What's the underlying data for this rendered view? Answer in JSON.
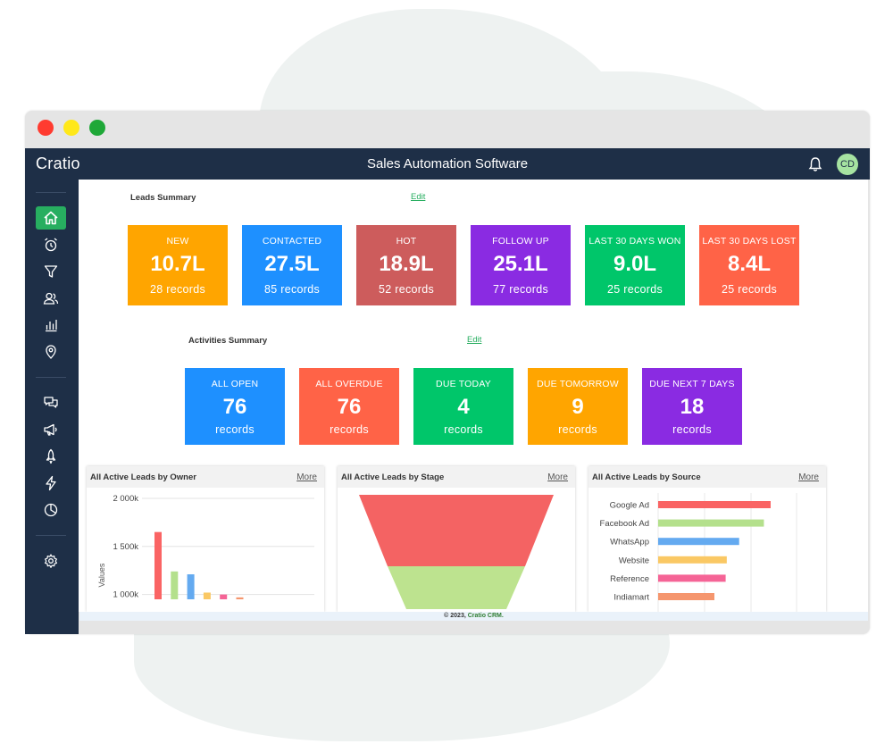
{
  "window": {
    "controls": [
      "close",
      "minimize",
      "maximize"
    ],
    "control_colors": [
      "#ff3b30",
      "#ffe81a",
      "#1fa838"
    ]
  },
  "topbar": {
    "brand": "Cratio",
    "title": "Sales Automation Software",
    "bell_icon": "bell-icon",
    "avatar": "CD"
  },
  "sidebar": {
    "items": [
      {
        "icon": "home-icon",
        "active": true
      },
      {
        "icon": "alarm-clock-icon"
      },
      {
        "icon": "filter-icon"
      },
      {
        "icon": "users-icon"
      },
      {
        "icon": "bar-chart-icon"
      },
      {
        "icon": "location-pin-icon"
      },
      {
        "icon": "chat-icon"
      },
      {
        "icon": "megaphone-icon"
      },
      {
        "icon": "rocket-icon"
      },
      {
        "icon": "lightning-icon"
      },
      {
        "icon": "pie-chart-icon"
      },
      {
        "icon": "gear-icon"
      }
    ]
  },
  "leads_summary": {
    "title": "Leads Summary",
    "edit": "Edit",
    "cards": [
      {
        "label": "NEW",
        "value": "10.7L",
        "sub": "28 records",
        "color": "#ffa500"
      },
      {
        "label": "CONTACTED",
        "value": "27.5L",
        "sub": "85 records",
        "color": "#1e90ff"
      },
      {
        "label": "HOT",
        "value": "18.9L",
        "sub": "52 records",
        "color": "#cd5c5c"
      },
      {
        "label": "FOLLOW UP",
        "value": "25.1L",
        "sub": "77 records",
        "color": "#8a2be2"
      },
      {
        "label": "LAST 30 DAYS WON",
        "value": "9.0L",
        "sub": "25 records",
        "color": "#00c66a"
      },
      {
        "label": "LAST 30 DAYS LOST",
        "value": "8.4L",
        "sub": "25 records",
        "color": "#ff6347"
      }
    ]
  },
  "activities_summary": {
    "title": "Activities Summary",
    "edit": "Edit",
    "cards": [
      {
        "label": "ALL OPEN",
        "value": "76",
        "sub": "records",
        "color": "#1e90ff"
      },
      {
        "label": "ALL OVERDUE",
        "value": "76",
        "sub": "records",
        "color": "#ff6347"
      },
      {
        "label": "DUE TODAY",
        "value": "4",
        "sub": "records",
        "color": "#00c66a"
      },
      {
        "label": "DUE TOMORROW",
        "value": "9",
        "sub": "records",
        "color": "#ffa500"
      },
      {
        "label": "DUE NEXT 7 DAYS",
        "value": "18",
        "sub": "records",
        "color": "#8a2be2"
      }
    ]
  },
  "panels": [
    {
      "title": "All Active Leads by Owner",
      "more": "More"
    },
    {
      "title": "All Active Leads by Stage",
      "more": "More"
    },
    {
      "title": "All Active Leads by Source",
      "more": "More"
    }
  ],
  "chart_data": [
    {
      "type": "bar",
      "ylabel": "Values",
      "yticks": [
        "2 000k",
        "1 500k",
        "1 000k"
      ],
      "ylim": [
        950,
        2000
      ],
      "values": [
        1650,
        1240,
        1210,
        1020,
        1000,
        970
      ],
      "colors": [
        "#fa6464",
        "#b4e08c",
        "#64aaf0",
        "#fac864",
        "#f56496",
        "#f5966e"
      ],
      "grid": true
    },
    {
      "type": "funnel",
      "stage_colors": [
        "#f46363",
        "#bde38f"
      ]
    },
    {
      "type": "bar",
      "orientation": "horizontal",
      "categories": [
        "Google Ad",
        "Facebook Ad",
        "WhatsApp",
        "Website",
        "Reference",
        "Indiamart"
      ],
      "values": [
        100,
        94,
        72,
        61,
        60,
        50
      ],
      "colors": [
        "#fa6464",
        "#b4e08c",
        "#64aaf0",
        "#fac864",
        "#f56496",
        "#f5966e"
      ],
      "grid": true
    }
  ],
  "footer": {
    "text": "© 2023, ",
    "brand": "Cratio CRM."
  }
}
